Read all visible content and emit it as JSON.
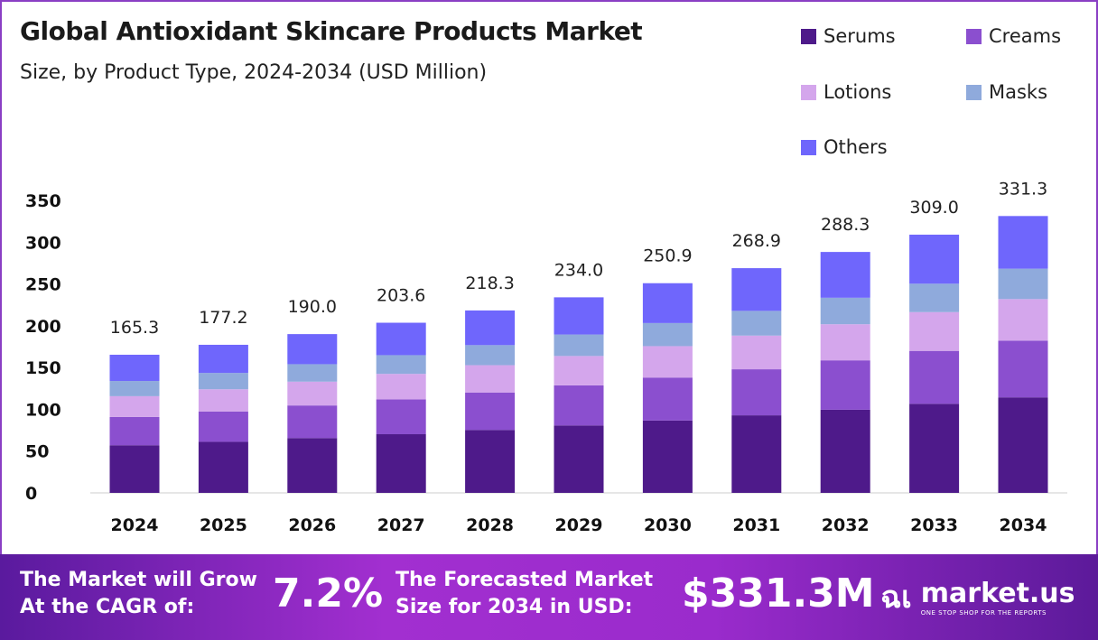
{
  "chart_data": {
    "type": "bar",
    "stacked": true,
    "title": "Global Antioxidant Skincare Products Market",
    "subtitle": "Size, by Product Type, 2024-2034 (USD Million)",
    "categories": [
      "2024",
      "2025",
      "2026",
      "2027",
      "2028",
      "2029",
      "2030",
      "2031",
      "2032",
      "2033",
      "2034"
    ],
    "series": [
      {
        "name": "Serums",
        "color": "#4e1a8a",
        "values": [
          57.0,
          61.1,
          65.6,
          70.2,
          75.3,
          80.7,
          86.6,
          92.8,
          99.5,
          106.6,
          114.3
        ]
      },
      {
        "name": "Creams",
        "color": "#8b4fcf",
        "values": [
          33.9,
          36.3,
          39.0,
          41.7,
          44.8,
          48.0,
          51.4,
          55.1,
          59.1,
          63.3,
          67.9
        ]
      },
      {
        "name": "Lotions",
        "color": "#d4a6ec",
        "values": [
          24.8,
          26.6,
          28.5,
          30.5,
          32.7,
          35.1,
          37.6,
          40.3,
          43.2,
          46.4,
          49.7
        ]
      },
      {
        "name": "Masks",
        "color": "#8faadc",
        "values": [
          18.2,
          19.5,
          20.9,
          22.4,
          24.0,
          25.7,
          27.6,
          29.6,
          31.7,
          34.0,
          36.4
        ]
      },
      {
        "name": "Others",
        "color": "#6f66fc",
        "values": [
          31.4,
          33.7,
          36.0,
          38.8,
          41.5,
          44.5,
          47.7,
          51.1,
          54.8,
          58.7,
          63.0
        ]
      }
    ],
    "totals": [
      "165.3",
      "177.2",
      "190.0",
      "203.6",
      "218.3",
      "234.0",
      "250.9",
      "268.9",
      "288.3",
      "309.0",
      "331.3"
    ],
    "yticks": [
      "0",
      "50",
      "100",
      "150",
      "200",
      "250",
      "300",
      "350"
    ],
    "ylim": [
      0,
      350
    ],
    "grid": false,
    "legend": "top-right"
  },
  "banner": {
    "cagr_label_1": "The Market will Grow",
    "cagr_label_2": "At the CAGR of:",
    "cagr_value": "7.2%",
    "forecast_label_1": "The Forecasted Market",
    "forecast_label_2": "Size for 2034 in USD:",
    "forecast_value": "$331.3M",
    "logo_name": "market.us",
    "logo_tagline": "ONE STOP SHOP FOR THE REPORTS"
  }
}
